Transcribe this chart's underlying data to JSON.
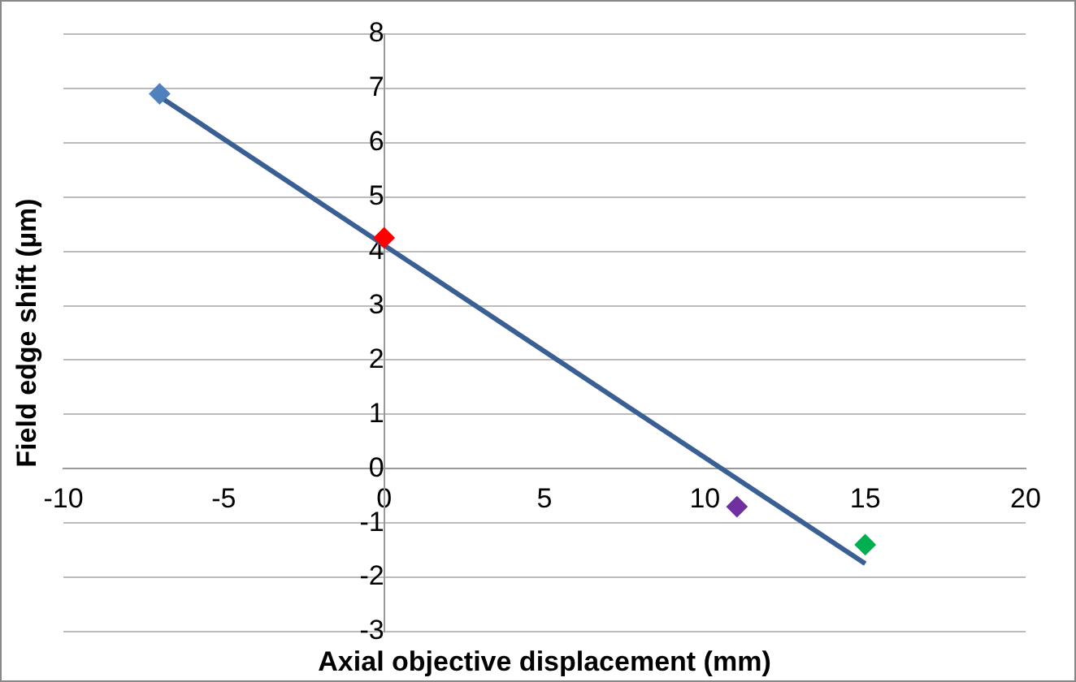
{
  "chart_data": {
    "type": "scatter",
    "xlabel": "Axial objective displacement (mm)",
    "ylabel": "Field edge shift (µm)",
    "xlim": [
      -10,
      20
    ],
    "xticks": [
      -10,
      -5,
      0,
      5,
      10,
      15,
      20
    ],
    "ylim": [
      -3,
      8
    ],
    "yticks": [
      -3,
      -2,
      -1,
      0,
      1,
      2,
      3,
      4,
      5,
      6,
      7,
      8
    ],
    "grid": "y",
    "legend": false,
    "marker": "diamond",
    "series": [
      {
        "color": "#4f81bd",
        "x": [
          -7
        ],
        "values": [
          6.9
        ]
      },
      {
        "color": "#ff0000",
        "x": [
          0
        ],
        "values": [
          4.25
        ]
      },
      {
        "color": "#7030a0",
        "x": [
          11
        ],
        "values": [
          -0.7
        ]
      },
      {
        "color": "#00b050",
        "x": [
          15
        ],
        "values": [
          -1.4
        ]
      },
      {
        "type": "line",
        "marker": "none",
        "color": "#3a5f94",
        "x": [
          -7,
          15
        ],
        "values": [
          6.85,
          -1.75
        ]
      }
    ]
  }
}
